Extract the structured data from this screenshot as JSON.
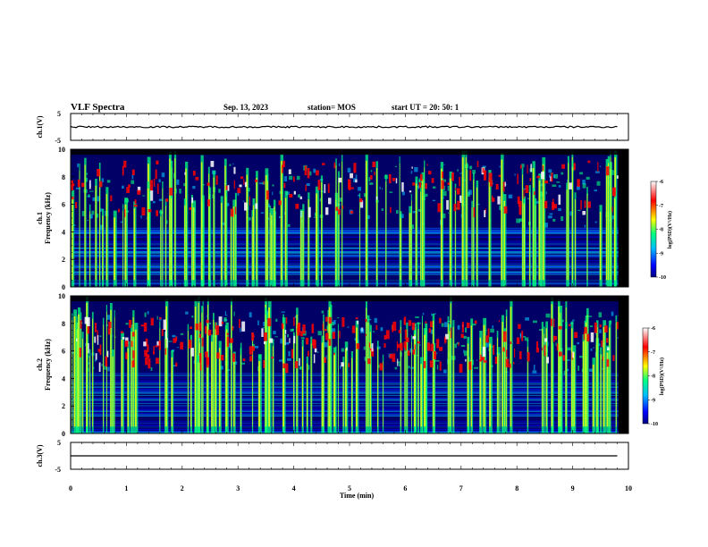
{
  "header": {
    "title": "VLF Spectra",
    "date": "Sep. 13, 2023",
    "station": "station= MOS",
    "start": "start  UT  =   20: 50: 1"
  },
  "chart_data": [
    {
      "type": "line",
      "name": "ch1-waveform",
      "ylabel": "ch.1(V)",
      "ylim": [
        -5,
        5
      ],
      "yticks": [
        "5",
        "-5"
      ],
      "x": [
        0,
        9.8
      ],
      "y": [
        0,
        0
      ]
    },
    {
      "type": "heatmap",
      "name": "ch1-spectrogram",
      "ylabel": "ch.1\nFrequency (kHz)",
      "ylim": [
        0,
        10
      ],
      "yticks": [
        "0",
        "2",
        "4",
        "6",
        "8",
        "10"
      ],
      "colorbar": {
        "label": "log(PSD)(V²/Hz)",
        "range": [
          -10,
          -6
        ],
        "ticks": [
          "-6",
          "-7",
          "-8",
          "-9",
          "-10"
        ]
      }
    },
    {
      "type": "heatmap",
      "name": "ch2-spectrogram",
      "ylabel": "ch.2\nFrequency (kHz)",
      "ylim": [
        0,
        10
      ],
      "yticks": [
        "0",
        "2",
        "4",
        "6",
        "8",
        "10"
      ],
      "colorbar": {
        "label": "log(PSD)(V²/Hz)",
        "range": [
          -10,
          -6
        ],
        "ticks": [
          "-6",
          "-7",
          "-8",
          "-9",
          "-10"
        ]
      }
    },
    {
      "type": "line",
      "name": "ch3-waveform",
      "ylabel": "ch.3(V)",
      "ylim": [
        -5,
        5
      ],
      "yticks": [
        "5",
        "-5"
      ],
      "x": [
        0,
        9.8
      ],
      "y": [
        0,
        0
      ]
    }
  ],
  "xaxis": {
    "label": "Time  (min)",
    "range": [
      0,
      10
    ],
    "ticks": [
      "0",
      "1",
      "2",
      "3",
      "4",
      "5",
      "6",
      "7",
      "8",
      "9",
      "10"
    ]
  },
  "colors": {
    "spectrogram": [
      "#000000",
      "#00008f",
      "#0000ff",
      "#00bfff",
      "#00ff80",
      "#ffff00",
      "#ff0000",
      "#ffffff"
    ]
  }
}
